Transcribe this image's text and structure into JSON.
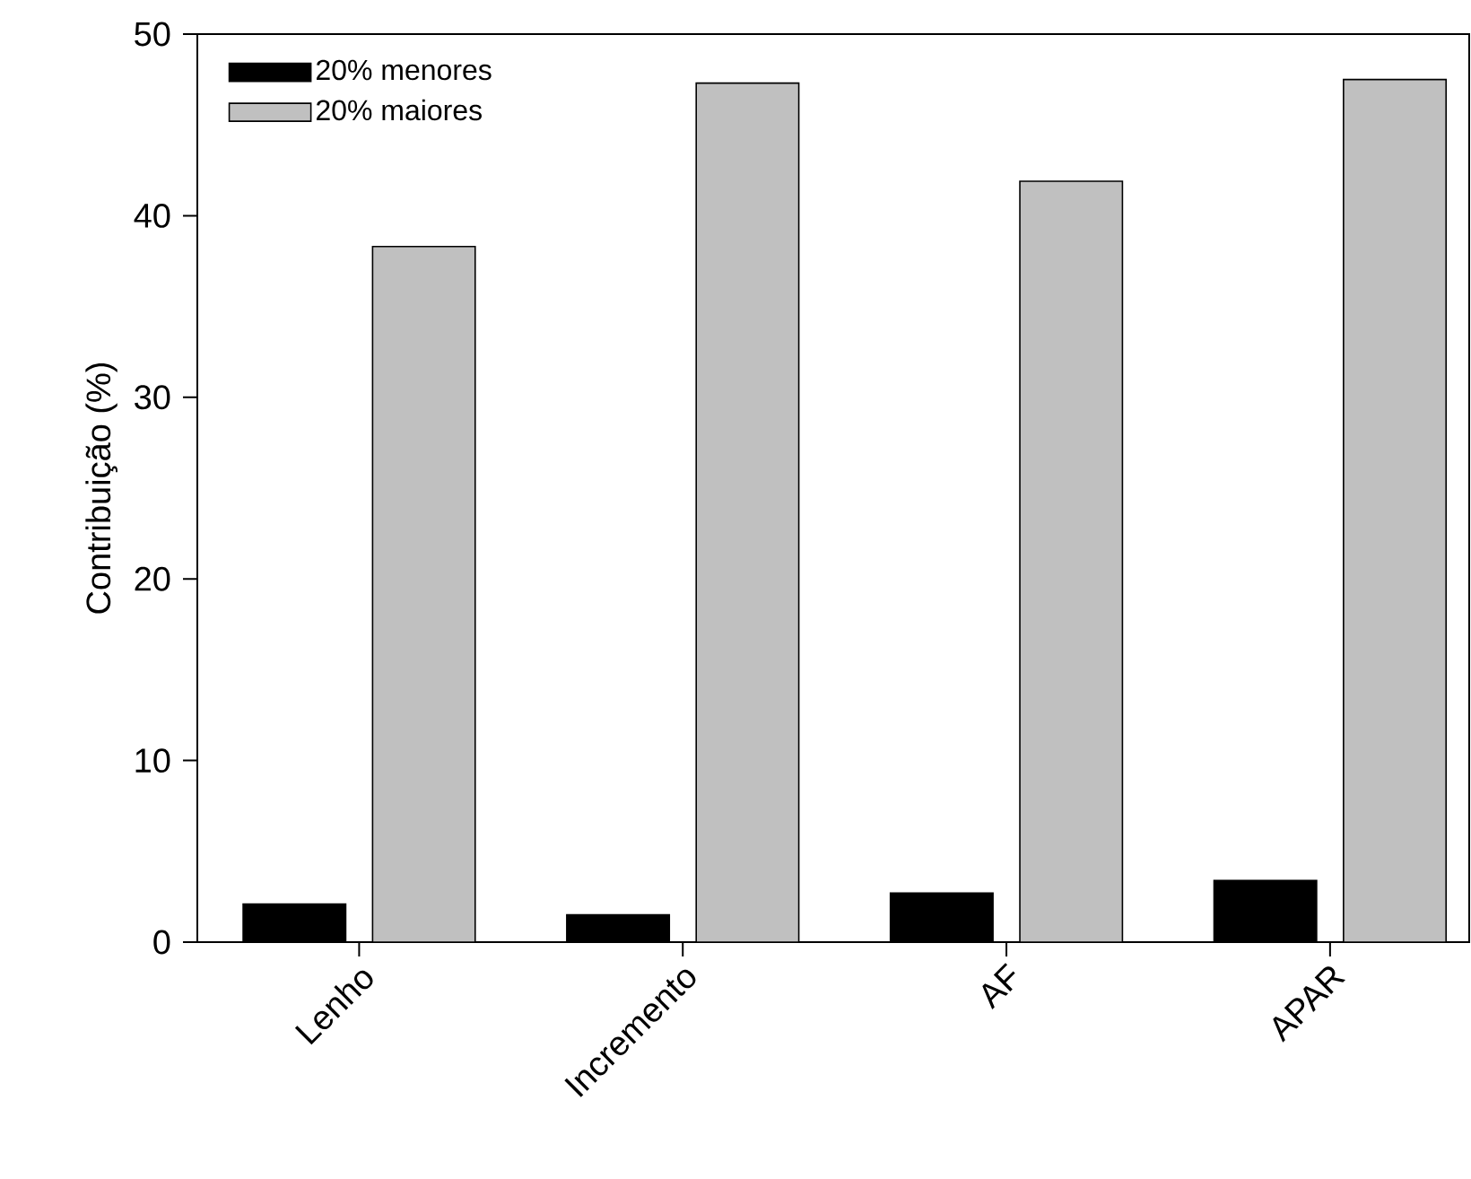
{
  "chart_data": {
    "type": "bar",
    "ylabel": "Contribuição (%)",
    "categories": [
      "Lenho",
      "Incremento",
      "AF",
      "APAR"
    ],
    "series": [
      {
        "name": "20% menores",
        "color": "#000000",
        "values": [
          2.1,
          1.5,
          2.7,
          3.4
        ]
      },
      {
        "name": "20% maiores",
        "color": "#c0c0c0",
        "values": [
          38.3,
          47.3,
          41.9,
          47.5
        ]
      }
    ],
    "ylim": [
      0,
      50
    ],
    "yticks": [
      0,
      10,
      20,
      30,
      40,
      50
    ],
    "legend": "top left"
  }
}
